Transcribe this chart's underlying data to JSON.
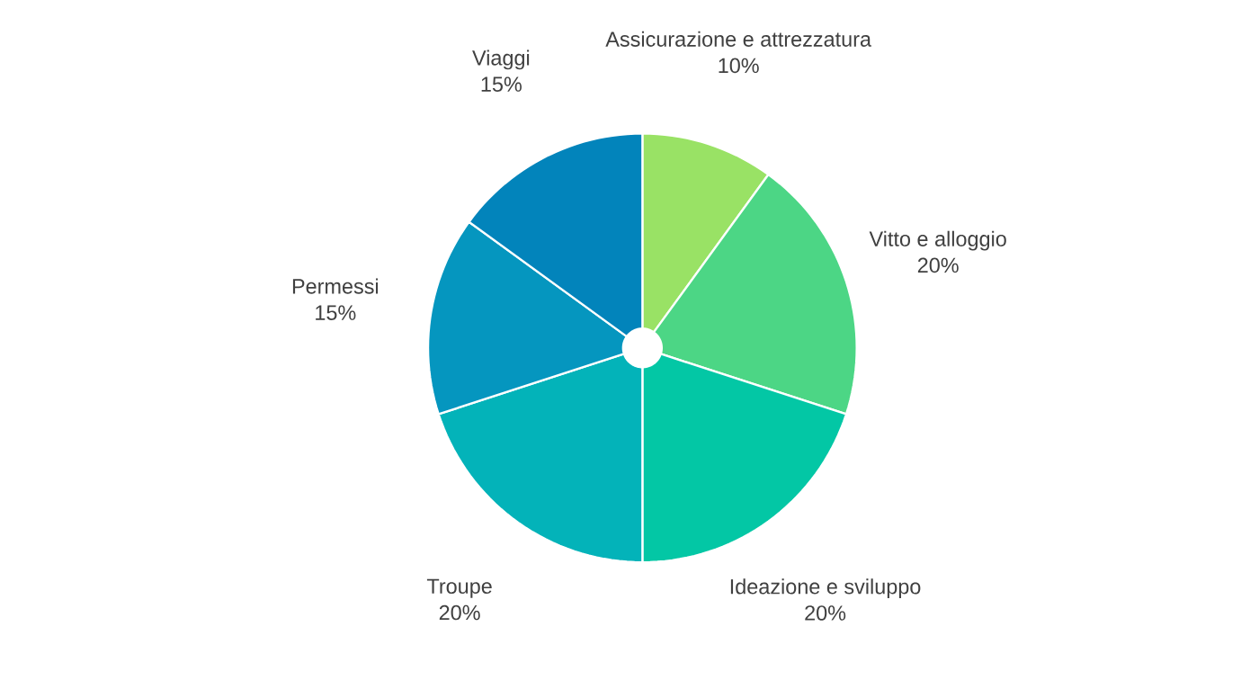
{
  "chart_data": {
    "type": "pie",
    "categories": [
      "Assicurazione e attrezzatura",
      "Vitto e alloggio",
      "Ideazione e sviluppo",
      "Troupe",
      "Permessi",
      "Viaggi"
    ],
    "values": [
      10,
      20,
      20,
      20,
      15,
      15
    ],
    "value_labels": [
      "10%",
      "20%",
      "20%",
      "20%",
      "15%",
      "15%"
    ],
    "data_labels": true,
    "legend": false,
    "colors": [
      "#99e265",
      "#4cd685",
      "#03c7a5",
      "#03b3b9",
      "#0596bf",
      "#0284bb"
    ]
  }
}
